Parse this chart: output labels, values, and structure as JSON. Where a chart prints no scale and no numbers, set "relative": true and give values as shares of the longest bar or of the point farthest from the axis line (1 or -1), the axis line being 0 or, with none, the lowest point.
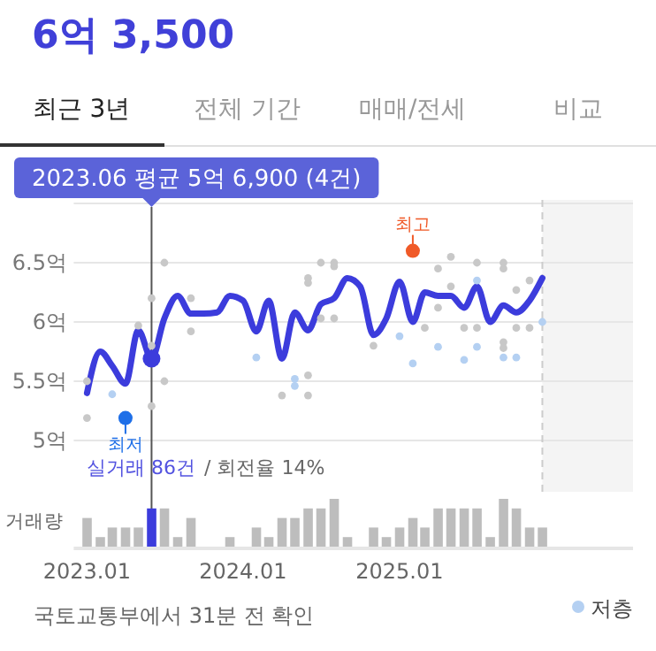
{
  "chart_data": [
    {
      "type": "line",
      "title": "6억 3,500",
      "xlim": [
        "2022-12",
        "2026-07"
      ],
      "ylim": [
        5,
        7
      ],
      "yticks": [
        {
          "value": 5,
          "label": "5억"
        },
        {
          "value": 5.5,
          "label": "5.5억"
        },
        {
          "value": 6,
          "label": "6억"
        },
        {
          "value": 6.5,
          "label": "6.5억"
        },
        {
          "value": 7,
          "label": null
        }
      ],
      "grid": "y",
      "tick_labels": "y",
      "legend": "bottom right",
      "series": [
        {
          "type": "scatter",
          "color": "#c8c8c8",
          "x": [
            "2023-01",
            "2023-01",
            "2023-05",
            "2023-06",
            "2023-06",
            "2023-06",
            "2023-07",
            "2023-07",
            "2023-09",
            "2023-09",
            "2024-04",
            "2024-06",
            "2024-06",
            "2024-06",
            "2024-06",
            "2024-07",
            "2024-07",
            "2024-08",
            "2024-08",
            "2024-08",
            "2024-11",
            "2025-03",
            "2025-04",
            "2025-04",
            "2025-05",
            "2025-05",
            "2025-06",
            "2025-07",
            "2025-07",
            "2025-09",
            "2025-09",
            "2025-09",
            "2025-09",
            "2025-10",
            "2025-10",
            "2025-11",
            "2025-11"
          ],
          "values": [
            5.5,
            5.19,
            5.97,
            6.2,
            5.8,
            5.29,
            6.5,
            5.5,
            6.2,
            5.92,
            5.38,
            6.37,
            6.33,
            5.55,
            5.38,
            6.5,
            6.03,
            6.5,
            6.47,
            6.03,
            5.8,
            5.95,
            6.45,
            6.12,
            6.55,
            6.3,
            5.95,
            6.5,
            5.95,
            6.5,
            6.45,
            5.83,
            5.78,
            6.27,
            5.95,
            6.35,
            5.95
          ]
        },
        {
          "type": "scatter",
          "name": "저층",
          "color": "#b4d0f2",
          "x": [
            "2023-03",
            "2024-02",
            "2024-05",
            "2024-05",
            "2025-01",
            "2025-02",
            "2025-04",
            "2025-06",
            "2025-07",
            "2025-07",
            "2025-09",
            "2025-10",
            "2025-12"
          ],
          "values": [
            5.39,
            5.7,
            5.52,
            5.46,
            5.88,
            5.65,
            5.79,
            5.68,
            5.79,
            6.35,
            5.7,
            5.7,
            6.0
          ]
        },
        {
          "type": "line",
          "color": "#3c3cdc",
          "x": [
            "2023-01",
            "2023-02",
            "2023-03",
            "2023-04",
            "2023-05",
            "2023-06",
            "2023-07",
            "2023-08",
            "2023-09",
            "2023-10",
            "2023-11",
            "2023-12",
            "2024-01",
            "2024-02",
            "2024-03",
            "2024-04",
            "2024-05",
            "2024-06",
            "2024-07",
            "2024-08",
            "2024-09",
            "2024-10",
            "2024-11",
            "2024-12",
            "2025-01",
            "2025-02",
            "2025-03",
            "2025-04",
            "2025-05",
            "2025-06",
            "2025-07",
            "2025-08",
            "2025-09",
            "2025-10",
            "2025-11",
            "2025-12"
          ],
          "values": [
            5.4,
            5.75,
            5.63,
            5.48,
            5.93,
            5.69,
            6.03,
            6.22,
            6.07,
            6.07,
            6.08,
            6.22,
            6.18,
            5.92,
            6.18,
            5.69,
            6.08,
            5.93,
            6.15,
            6.2,
            6.37,
            6.3,
            5.89,
            6.03,
            6.34,
            6.0,
            6.25,
            6.22,
            6.22,
            6.12,
            6.3,
            6.0,
            6.14,
            6.08,
            6.18,
            6.37
          ]
        },
        {
          "type": "scatter",
          "color": "#f05a28",
          "x": [
            "2025-02"
          ],
          "values": [
            6.6
          ]
        },
        {
          "type": "scatter",
          "color": "#1e6fe8",
          "x": [
            "2023-04"
          ],
          "values": [
            5.19
          ]
        }
      ],
      "ref_lines": [
        {
          "axis": "x",
          "value": "2023-06",
          "color": "#555555"
        },
        {
          "axis": "x",
          "value": "2025-12",
          "color": "#cccccc",
          "line_style": "dashed"
        }
      ],
      "bands": [
        {
          "axis": "x",
          "from": "2025-12",
          "to": "2026-07",
          "color": "#f4f4f4"
        }
      ],
      "annotations": [
        "2023.06 평균 5억 6,900 (4건)",
        {
          "text": "최고",
          "x": "2025-02",
          "y": 6.6
        },
        {
          "text": "최저",
          "x": "2023-04",
          "y": 5.19
        },
        "실거래 86건",
        "/ 회전율 14%",
        "국토교통부에서 31분 전 확인",
        "최근 3년",
        "전체 기간",
        "매매/전세",
        "비교"
      ]
    },
    {
      "type": "bar",
      "relative": true,
      "ylabel": "거래량",
      "xlim": [
        "2022-12",
        "2026-07"
      ],
      "xticks": [
        {
          "value": "2023-01",
          "label": "2023.01"
        },
        {
          "value": "2024-01",
          "label": "2024.01"
        },
        {
          "value": "2025-01",
          "label": "2025.01"
        }
      ],
      "x": [
        "2023-01",
        "2023-02",
        "2023-03",
        "2023-04",
        "2023-05",
        "2023-06",
        "2023-07",
        "2023-08",
        "2023-09",
        "2023-12",
        "2024-02",
        "2024-03",
        "2024-04",
        "2024-05",
        "2024-06",
        "2024-07",
        "2024-08",
        "2024-09",
        "2024-11",
        "2024-12",
        "2025-01",
        "2025-02",
        "2025-03",
        "2025-04",
        "2025-05",
        "2025-06",
        "2025-07",
        "2025-08",
        "2025-09",
        "2025-10",
        "2025-11",
        "2025-12"
      ],
      "values": [
        0.6,
        0.2,
        0.4,
        0.4,
        0.4,
        0.8,
        0.8,
        0.2,
        0.6,
        0.2,
        0.4,
        0.2,
        0.6,
        0.6,
        0.8,
        0.8,
        1,
        0.2,
        0.4,
        0.2,
        0.4,
        0.6,
        0.4,
        0.8,
        0.8,
        0.8,
        0.8,
        0.2,
        1,
        0.8,
        0.4,
        0.4
      ],
      "colors": [
        "#bdbdbd",
        "#bdbdbd",
        "#bdbdbd",
        "#bdbdbd",
        "#bdbdbd",
        "#3c3cdc",
        "#bdbdbd",
        "#bdbdbd",
        "#bdbdbd",
        "#bdbdbd",
        "#bdbdbd",
        "#bdbdbd",
        "#bdbdbd",
        "#bdbdbd",
        "#bdbdbd",
        "#bdbdbd",
        "#bdbdbd",
        "#bdbdbd",
        "#bdbdbd",
        "#bdbdbd",
        "#bdbdbd",
        "#bdbdbd",
        "#bdbdbd",
        "#bdbdbd",
        "#bdbdbd",
        "#bdbdbd",
        "#bdbdbd",
        "#bdbdbd",
        "#bdbdbd",
        "#bdbdbd",
        "#bdbdbd",
        "#bdbdbd"
      ]
    }
  ]
}
